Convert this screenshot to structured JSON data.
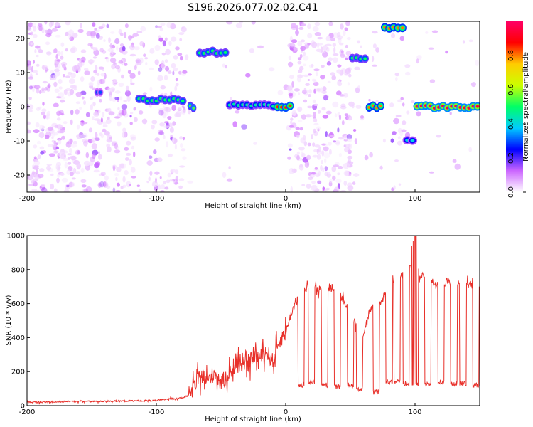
{
  "chart_data": [
    {
      "type": "heatmap",
      "title": "S196.2026.077.02.02.C41",
      "xlabel": "Height of straight line (km)",
      "ylabel": "Frequency (Hz)",
      "xlim": [
        -200,
        150
      ],
      "ylim": [
        -25,
        25
      ],
      "xticks": [
        -200,
        -100,
        0,
        100
      ],
      "yticks": [
        -20,
        -10,
        0,
        10,
        20
      ],
      "colorbar": {
        "label": "Normalized spectral amplitude",
        "range": [
          0,
          1
        ],
        "ticks": [
          0.0,
          0.2,
          0.4,
          0.6,
          0.8
        ],
        "tick_labels": [
          "0.0",
          "0.2",
          "0.4",
          "0.6",
          "0.8"
        ],
        "colormap": [
          "#ffffff",
          "#cc66ff",
          "#0000ff",
          "#00ccff",
          "#00ff66",
          "#ccff00",
          "#ffcc00",
          "#ff0000",
          "#ff0066"
        ]
      },
      "features": [
        {
          "x_start": -75,
          "x_end": -70,
          "freq": 0,
          "amp": 0.55
        },
        {
          "x_start": -115,
          "x_end": -78,
          "freq": 2,
          "amp": 0.5
        },
        {
          "x_start": -147,
          "x_end": -142,
          "freq": 4,
          "amp": 0.3
        },
        {
          "x_start": -68,
          "x_end": -45,
          "freq": 16,
          "amp": 0.5
        },
        {
          "x_start": -45,
          "x_end": -8,
          "freq": 0.5,
          "amp": 0.45
        },
        {
          "x_start": -8,
          "x_end": 5,
          "freq": 0,
          "amp": 0.85
        },
        {
          "x_start": 50,
          "x_end": 63,
          "freq": 14,
          "amp": 0.5
        },
        {
          "x_start": 63,
          "x_end": 75,
          "freq": 0,
          "amp": 0.8
        },
        {
          "x_start": 75,
          "x_end": 92,
          "freq": 23,
          "amp": 0.8
        },
        {
          "x_start": 92,
          "x_end": 100,
          "freq": -10,
          "amp": 0.4
        },
        {
          "x_start": 100,
          "x_end": 150,
          "freq": 0,
          "amp": 0.95
        }
      ]
    },
    {
      "type": "line",
      "xlabel": "Height of straight line (km)",
      "ylabel": "SNR (10 * v/v)",
      "xlim": [
        -200,
        150
      ],
      "ylim": [
        0,
        1000
      ],
      "xticks": [
        -200,
        -100,
        0,
        100
      ],
      "yticks": [
        0,
        200,
        400,
        600,
        800,
        1000
      ],
      "color": "#e8302a",
      "series": [
        {
          "name": "SNR",
          "x": [
            -200,
            -180,
            -160,
            -140,
            -120,
            -100,
            -90,
            -80,
            -75,
            -70,
            -65,
            -60,
            -55,
            -50,
            -45,
            -40,
            -35,
            -30,
            -25,
            -20,
            -15,
            -10,
            -5,
            0,
            5,
            10,
            15,
            20,
            25,
            30,
            35,
            40,
            45,
            50,
            55,
            60,
            65,
            70,
            75,
            80,
            85,
            90,
            95,
            100,
            105,
            110,
            115,
            120,
            125,
            130,
            135,
            140,
            145,
            150
          ],
          "values": [
            20,
            22,
            25,
            25,
            28,
            30,
            40,
            45,
            60,
            120,
            180,
            140,
            200,
            130,
            180,
            220,
            260,
            210,
            300,
            280,
            320,
            260,
            380,
            430,
            560,
            640,
            690,
            700,
            680,
            710,
            690,
            670,
            620,
            560,
            460,
            420,
            560,
            590,
            620,
            760,
            750,
            760,
            800,
            820,
            760,
            740,
            720,
            710,
            730,
            720,
            715,
            720,
            710,
            700
          ]
        },
        {
          "name": "dips",
          "x_positions": [
            12,
            20,
            30,
            40,
            50,
            57,
            70,
            80,
            86,
            93,
            100,
            110,
            120,
            130,
            137,
            147
          ],
          "values": [
            120,
            140,
            120,
            110,
            120,
            100,
            80,
            140,
            140,
            130,
            120,
            130,
            140,
            130,
            130,
            120
          ]
        }
      ]
    }
  ]
}
